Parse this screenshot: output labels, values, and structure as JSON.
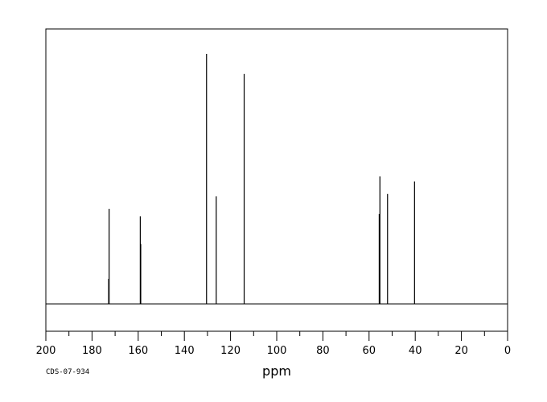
{
  "chart_data": {
    "type": "line",
    "title": "",
    "xlabel": "ppm",
    "ylabel": "",
    "xlim": [
      200,
      0
    ],
    "ylim": [
      0,
      1
    ],
    "x_ticks_major": [
      200,
      180,
      160,
      140,
      120,
      100,
      80,
      60,
      40,
      20,
      0
    ],
    "x_tick_labels": [
      "200",
      "180",
      "160",
      "140",
      "120",
      "100",
      "80",
      "60",
      "40",
      "20",
      "0"
    ],
    "x_ticks_minor_step": 10,
    "grid": false,
    "source_id": "CDS-07-934",
    "peaks": [
      {
        "ppm": 172.6,
        "intensity": 0.38
      },
      {
        "ppm": 172.8,
        "intensity": 0.1
      },
      {
        "ppm": 159.1,
        "intensity": 0.35
      },
      {
        "ppm": 158.9,
        "intensity": 0.24
      },
      {
        "ppm": 130.4,
        "intensity": 1.0
      },
      {
        "ppm": 126.2,
        "intensity": 0.43
      },
      {
        "ppm": 114.1,
        "intensity": 0.92
      },
      {
        "ppm": 55.3,
        "intensity": 0.51
      },
      {
        "ppm": 55.6,
        "intensity": 0.36
      },
      {
        "ppm": 52.0,
        "intensity": 0.44
      },
      {
        "ppm": 40.3,
        "intensity": 0.49
      }
    ]
  }
}
